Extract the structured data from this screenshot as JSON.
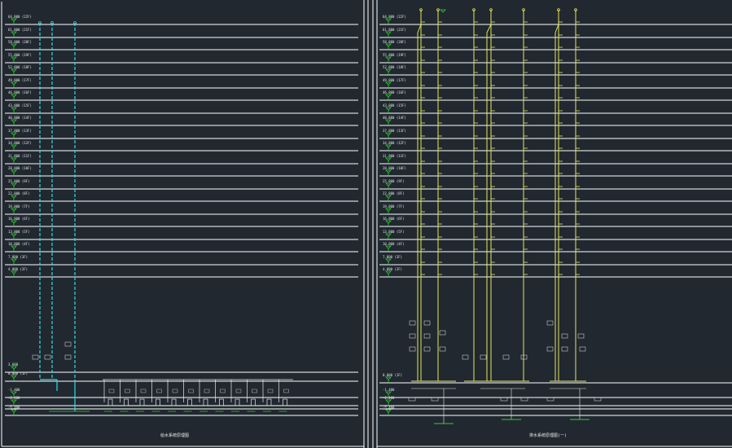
{
  "colors": {
    "background": "#212830",
    "floor_line": "#ffffff",
    "frame": "#ffffff",
    "level_marker": "#2fd12f",
    "left_riser": "#33d8e6",
    "right_riser": "#e4e65a",
    "annotation": "#e8e8e8"
  },
  "left_panel": {
    "floor_labels": [
      "64.800 (22F)",
      "61.800 (21F)",
      "58.800 (20F)",
      "55.800 (19F)",
      "52.800 (18F)",
      "49.800 (17F)",
      "46.800 (16F)",
      "43.800 (15F)",
      "40.800 (14F)",
      "37.800 (13F)",
      "34.800 (12F)",
      "31.800 (11F)",
      "28.800 (10F)",
      "25.800 (9F)",
      "22.800 (8F)",
      "19.800 (7F)",
      "16.800 (6F)",
      "13.800 (5F)",
      "10.800 (4F)",
      "7.800 (3F)",
      "4.800 (2F)",
      "3.600",
      "0.000 (1F)",
      "-1.400",
      "-2.400",
      "-5.400"
    ],
    "riser_count": 3,
    "title": "给水系统原理图"
  },
  "right_panel": {
    "floor_labels": [
      "64.800 (22F)",
      "61.800 (21F)",
      "58.800 (20F)",
      "55.800 (19F)",
      "52.800 (18F)",
      "49.800 (17F)",
      "46.800 (16F)",
      "43.800 (15F)",
      "40.800 (14F)",
      "37.800 (13F)",
      "34.800 (12F)",
      "31.800 (11F)",
      "28.800 (10F)",
      "25.800 (9F)",
      "22.800 (8F)",
      "19.800 (7F)",
      "16.800 (6F)",
      "13.800 (5F)",
      "10.800 (4F)",
      "7.800 (3F)",
      "4.800 (2F)",
      "0.000 (1F)",
      "-1.400",
      "-2.400",
      "-5.400"
    ],
    "riser_count": 6,
    "title": "排水系统原理图(一)"
  }
}
